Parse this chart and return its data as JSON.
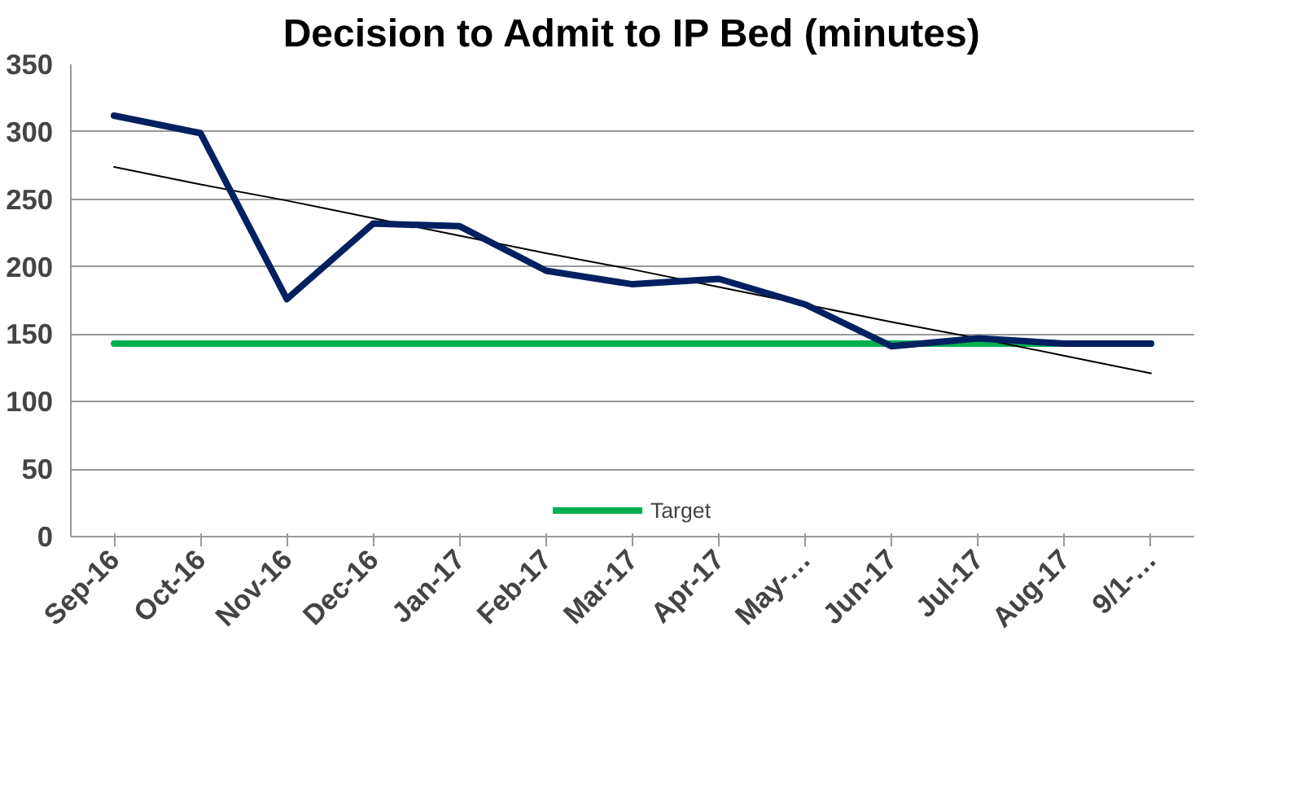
{
  "chart_data": {
    "type": "line",
    "title": "Decision to Admit to IP Bed (minutes)",
    "categories": [
      "Sep-16",
      "Oct-16",
      "Nov-16",
      "Dec-16",
      "Jan-17",
      "Feb-17",
      "Mar-17",
      "Apr-17",
      "May-…",
      "Jun-17",
      "Jul-17",
      "Aug-17",
      "9/1-…"
    ],
    "series": [
      {
        "color": "#002060",
        "values": [
          312,
          299,
          176,
          232,
          230,
          197,
          187,
          191,
          172,
          141,
          147,
          143,
          143
        ]
      },
      {
        "name": "Target",
        "color": "#00b050",
        "values": [
          143,
          143,
          143,
          143,
          143,
          143,
          143,
          143,
          143,
          143,
          143,
          143,
          143
        ]
      },
      {
        "color": "#000000",
        "values": [
          274,
          261,
          249,
          236,
          223,
          210,
          198,
          185,
          172,
          159,
          147,
          134,
          121
        ]
      }
    ],
    "ylim": [
      0,
      350
    ],
    "yticks": [
      0,
      50,
      100,
      150,
      200,
      250,
      300,
      350
    ],
    "grid": "y",
    "legend": "bottom"
  }
}
